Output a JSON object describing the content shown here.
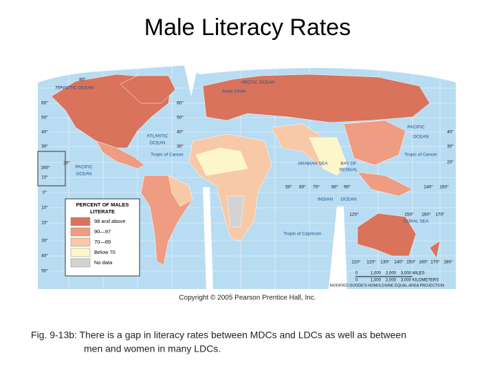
{
  "title": "Male Literacy Rates",
  "map": {
    "legend": {
      "title": [
        "PERCENT OF MALES",
        "LITERATE"
      ],
      "items": [
        {
          "label": "98 and above",
          "color": "#d9735c"
        },
        {
          "label": "90—97",
          "color": "#ee9c82"
        },
        {
          "label": "70—89",
          "color": "#f8c9a6"
        },
        {
          "label": "Below 70",
          "color": "#fdf6cb"
        },
        {
          "label": "No data",
          "color": "#d3d3d3"
        }
      ]
    },
    "labels": [
      "ARCTIC OCEAN",
      "ARCTIC OCEAN",
      "Arctic Circle",
      "ATLANTIC",
      "OCEAN",
      "PACIFIC",
      "OCEAN",
      "Tropic of Cancer",
      "ARABIAN SEA",
      "BAY OF",
      "BENGAL",
      "INDIAN",
      "OCEAN",
      "PACIFIC",
      "OCEAN",
      "Tropic of Cancer",
      "Tropic of Capricorn",
      "CORAL SEA"
    ],
    "degrees": [
      "80°",
      "70°",
      "60°",
      "50°",
      "40°",
      "30°",
      "20°",
      "160°",
      "10°",
      "0°",
      "10°",
      "20°",
      "30°",
      "40°",
      "50°",
      "60°",
      "50°",
      "40°",
      "30°",
      "50°",
      "60°",
      "70°",
      "80°",
      "90°",
      "140°",
      "150°",
      "40°",
      "30°",
      "20°",
      "120°",
      "150°",
      "160°",
      "170°",
      "110°",
      "120°",
      "130°",
      "140°",
      "150°",
      "160°",
      "170°",
      "180°"
    ],
    "scale": {
      "miles": [
        "0",
        "1,000",
        "2,000",
        "3,000 MILES"
      ],
      "kilometers": [
        "0",
        "1,000",
        "2,000",
        "3,000 KILOMETERS"
      ]
    },
    "projection": "MODIFIED GOODE'S HOMOLOSINE EQUAL-AREA PROJECTION"
  },
  "copyright": "Copyright © 2005 Pearson Prentice Hall, Inc.",
  "caption": [
    "Fig. 9-13b: There is a gap in literacy rates between MDCs and LDCs as well as between",
    "men and women in many LDCs."
  ]
}
